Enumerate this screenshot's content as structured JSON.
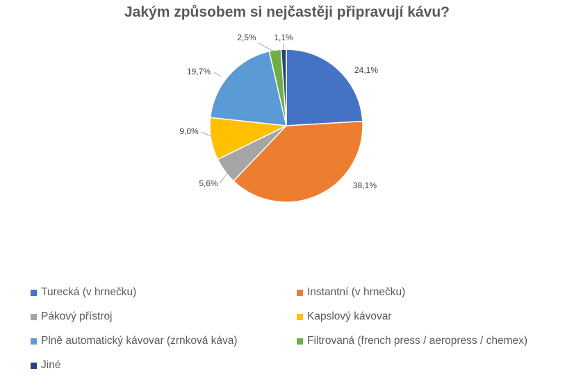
{
  "chart_data": {
    "type": "pie",
    "title": "Jakým způsobem si nejčastěji připravují kávu?",
    "slices": [
      {
        "name": "Turecká (v hrnečku)",
        "value": 24.1,
        "label": "24,1%",
        "color": "#4472C4"
      },
      {
        "name": "Instantní (v hrnečku)",
        "value": 38.1,
        "label": "38,1%",
        "color": "#ED7D31"
      },
      {
        "name": "Pákový přístroj",
        "value": 5.6,
        "label": "5,6%",
        "color": "#A5A5A5"
      },
      {
        "name": "Kapslový kávovar",
        "value": 9.0,
        "label": "9,0%",
        "color": "#FFC000"
      },
      {
        "name": "Plně automatický kávovar (zrnková káva)",
        "value": 19.7,
        "label": "19,7%",
        "color": "#5B9BD5"
      },
      {
        "name": "Filtrovaná (french press / aeropress / chemex)",
        "value": 2.5,
        "label": "2,5%",
        "color": "#70AD47"
      },
      {
        "name": "Jiné",
        "value": 1.1,
        "label": "1,1%",
        "color": "#264478"
      }
    ],
    "legend_position": "bottom"
  }
}
